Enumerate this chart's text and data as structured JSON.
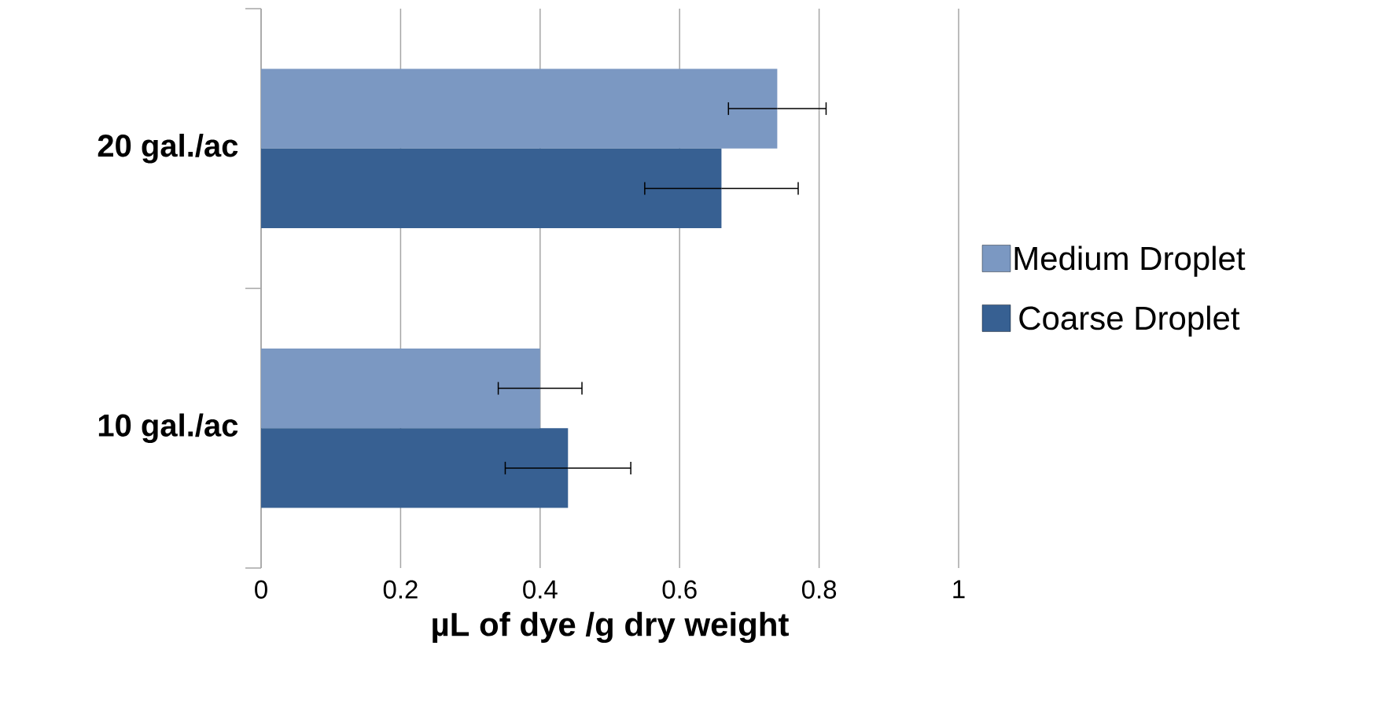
{
  "chart_data": {
    "type": "bar",
    "orientation": "horizontal",
    "categories": [
      "20 gal./ac",
      "10 gal./ac"
    ],
    "series": [
      {
        "name": "Medium Droplet",
        "color": "#7b98c2",
        "values": [
          0.74,
          0.4
        ],
        "errors": [
          0.07,
          0.06
        ]
      },
      {
        "name": "Coarse Droplet",
        "color": "#376092",
        "values": [
          0.66,
          0.44
        ],
        "errors": [
          0.11,
          0.09
        ]
      }
    ],
    "xlabel": "µL of dye /g dry weight",
    "xlim": [
      0,
      1
    ],
    "xticks": [
      0,
      0.2,
      0.4,
      0.6,
      0.8,
      1
    ],
    "grid": "x",
    "legend": "right"
  }
}
